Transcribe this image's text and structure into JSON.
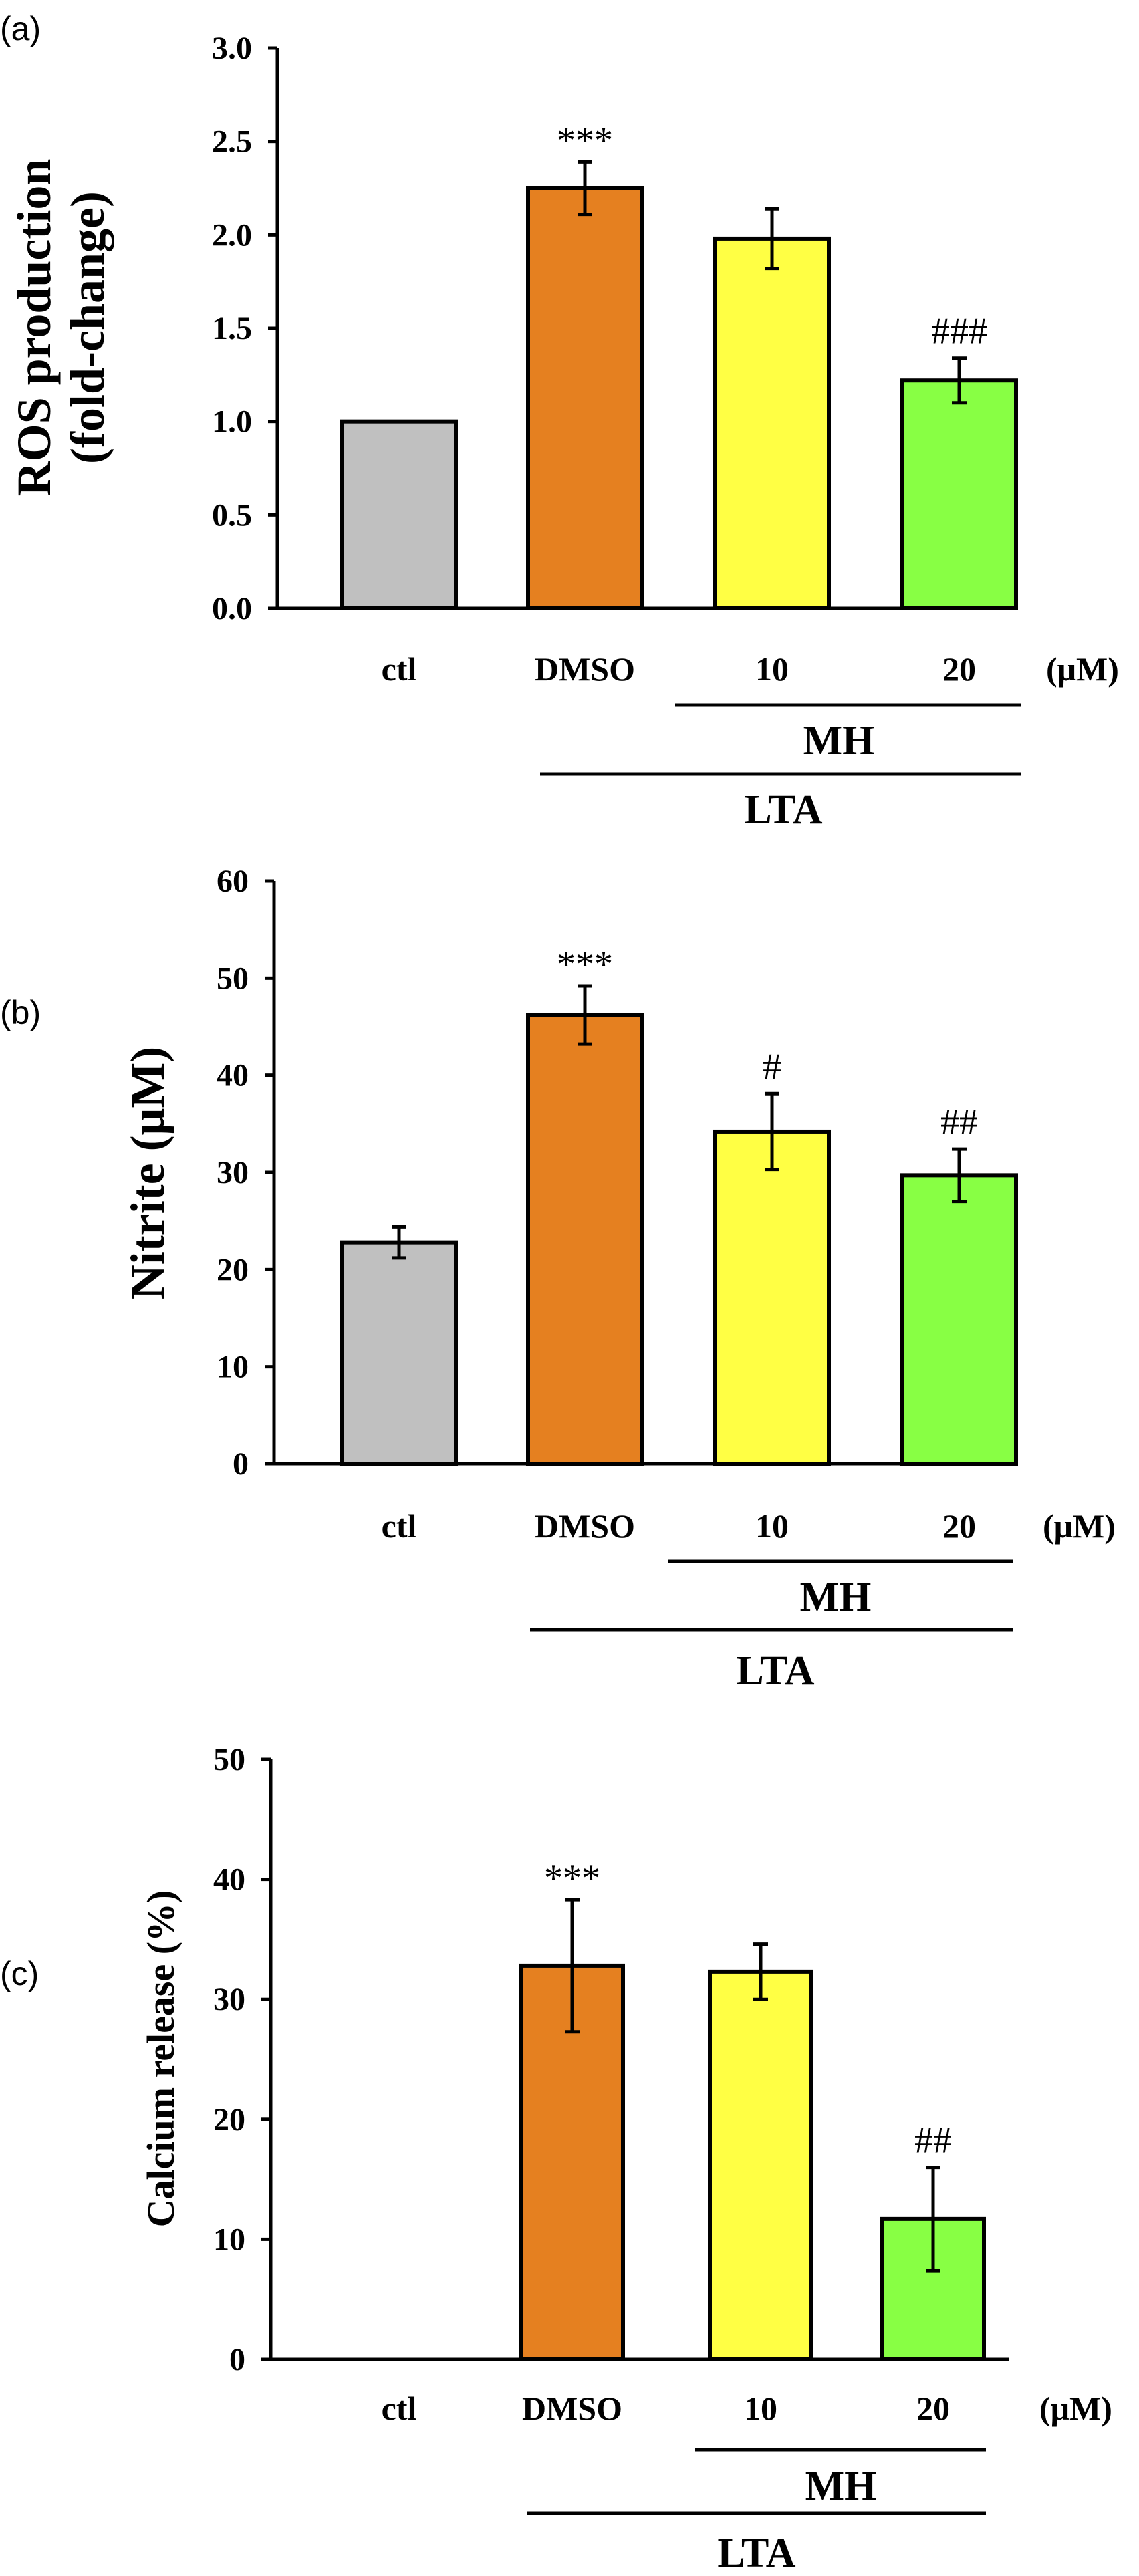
{
  "figure": {
    "units_label": "(μM)",
    "category_labels": [
      "ctl",
      "DMSO",
      "10",
      "20"
    ],
    "group_labels": {
      "inner": "MH",
      "outer": "LTA"
    }
  },
  "colors": {
    "ctl": "#c0c0c0",
    "DMSO": "#e58020",
    "MH10": "#ffff44",
    "MH20": "#88ff44"
  },
  "chart_data": [
    {
      "panel": "(a)",
      "type": "bar",
      "ylabel_lines": [
        "ROS production",
        "(fold-change)"
      ],
      "categories": [
        "ctl",
        "DMSO",
        "10",
        "20"
      ],
      "values": [
        1.0,
        2.25,
        1.98,
        1.22
      ],
      "errors": [
        0,
        0.14,
        0.16,
        0.12
      ],
      "annotations": [
        "",
        "***",
        "",
        "###"
      ],
      "ylim": [
        0,
        3.0
      ],
      "yticks": [
        "0.0",
        "0.5",
        "1.0",
        "1.5",
        "2.0",
        "2.5",
        "3.0"
      ]
    },
    {
      "panel": "(b)",
      "type": "bar",
      "ylabel_lines": [
        "Nitrite (μM)"
      ],
      "categories": [
        "ctl",
        "DMSO",
        "10",
        "20"
      ],
      "values": [
        22.8,
        46.2,
        34.2,
        29.7
      ],
      "errors": [
        1.6,
        3.0,
        3.9,
        2.7
      ],
      "annotations": [
        "",
        "***",
        "#",
        "##"
      ],
      "ylim": [
        0,
        60
      ],
      "yticks": [
        "0",
        "10",
        "20",
        "30",
        "40",
        "50",
        "60"
      ]
    },
    {
      "panel": "(c)",
      "type": "bar",
      "ylabel_lines": [
        "Calcium release (%)"
      ],
      "categories": [
        "ctl",
        "DMSO",
        "10",
        "20"
      ],
      "values": [
        0,
        32.8,
        32.3,
        11.7
      ],
      "errors": [
        0,
        5.5,
        2.3,
        4.3
      ],
      "annotations": [
        "",
        "***",
        "",
        "##"
      ],
      "ylim": [
        0,
        50
      ],
      "yticks": [
        "0",
        "10",
        "20",
        "30",
        "40",
        "50"
      ]
    }
  ]
}
